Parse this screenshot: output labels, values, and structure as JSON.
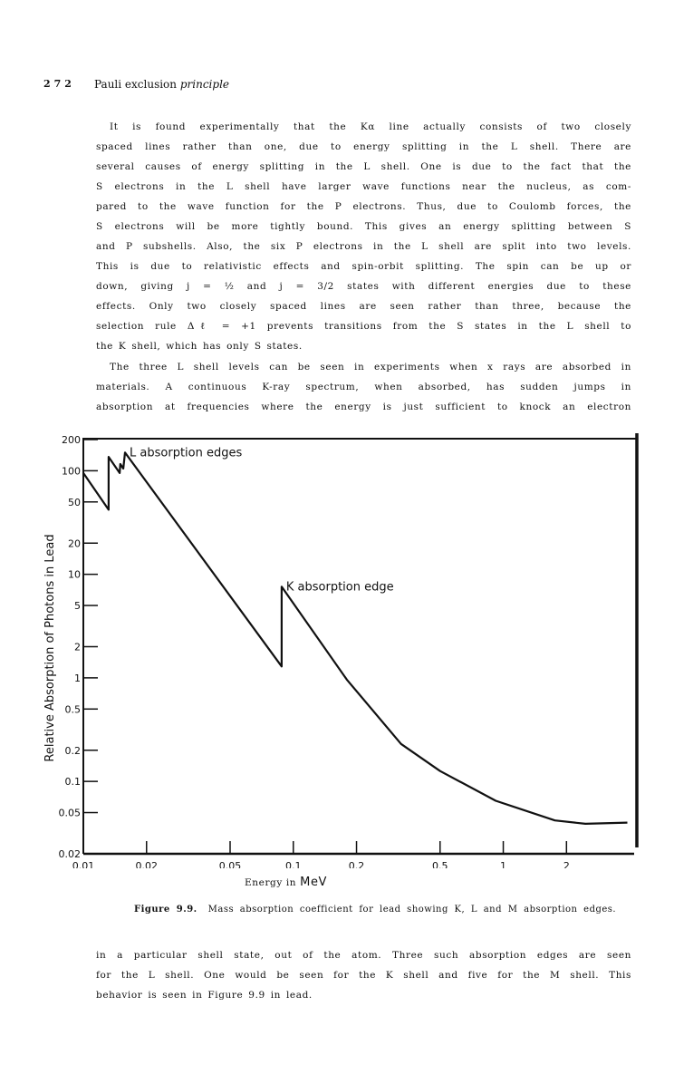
{
  "header": {
    "page_number": "272",
    "running_title": "Pauli exclusion",
    "running_title_italic": "principle"
  },
  "paragraph1": [
    "It is found experimentally that the Kα line actually consists of two closely",
    "spaced lines rather than one, due to energy splitting in the L shell. There are",
    "several causes of energy splitting in the L shell. One is due to the fact that the",
    "S electrons in the L shell have larger wave functions near the nucleus, as com-",
    "pared to the wave function for the P electrons. Thus, due to Coulomb forces, the",
    "S electrons will be more tightly bound. This gives an energy splitting between S",
    "and P subshells. Also, the six P electrons in the L shell are split into two levels.",
    "This is due to relativistic effects and spin-orbit splitting. The spin can be up or",
    "down, giving j = ½ and j = 3/2 states with different energies due to these",
    "effects. Only two closely spaced lines are seen rather than three, because the",
    "selection rule Δℓ = +1 prevents transitions from the S states in the L shell to",
    "the K shell, which has only S states."
  ],
  "paragraph2": [
    "The three L shell levels can be seen in experiments when x rays are absorbed in",
    "materials. A continuous K-ray spectrum, when absorbed, has sudden jumps in",
    "absorption at frequencies where the energy is just sufficient to knock an electron"
  ],
  "paragraph3": [
    "in a particular shell state, out of the atom. Three such absorption edges are seen",
    "for the L shell. One would be seen for the K shell and five for the M shell. This",
    "behavior is seen in Figure 9.9 in lead."
  ],
  "figure": {
    "label": "Figure 9.9.",
    "caption": "Mass absorption coefficient for lead showing K, L and M absorption edges."
  },
  "chart_data": {
    "type": "line",
    "xlabel": "Energy in",
    "xlabel_unit": "MeV",
    "ylabel": "Relative Absorption of Photons in Lead",
    "x_scale": "log",
    "y_scale": "log",
    "xlim": [
      0.01,
      4.2
    ],
    "ylim": [
      0.02,
      200
    ],
    "x_ticks": [
      0.01,
      0.02,
      0.05,
      0.1,
      0.2,
      0.5,
      1,
      2
    ],
    "x_tick_labels": [
      "0.01",
      "0.02",
      "0.05",
      "0.1",
      "0.2",
      "0.5",
      "1",
      "2"
    ],
    "y_ticks": [
      200,
      100,
      50,
      20,
      10,
      5,
      2,
      1,
      0.5,
      0.2,
      0.1,
      0.05,
      0.02
    ],
    "y_tick_labels": [
      "200",
      "100",
      "50",
      "20",
      "10",
      "5",
      "2",
      "1",
      "0.5",
      "0.2",
      "0.1",
      "0.05",
      "0.02"
    ],
    "grid": false,
    "line_color": "#111111",
    "series": [
      {
        "x": [
          0.01,
          0.0132,
          0.0132,
          0.0149,
          0.015,
          0.0155,
          0.0158,
          0.088,
          0.088,
          0.18,
          0.326,
          0.5,
          0.92,
          1.76,
          2.46,
          3.9
        ],
        "y": [
          95,
          42,
          136,
          95,
          116,
          105,
          150,
          1.29,
          7.6,
          0.96,
          0.23,
          0.126,
          0.065,
          0.042,
          0.039,
          0.04
        ]
      }
    ],
    "annotations": [
      {
        "text": "L absorption edges",
        "x": 0.0158,
        "y": 150
      },
      {
        "text": "K absorption edge",
        "x": 0.088,
        "y": 7.6
      }
    ]
  }
}
